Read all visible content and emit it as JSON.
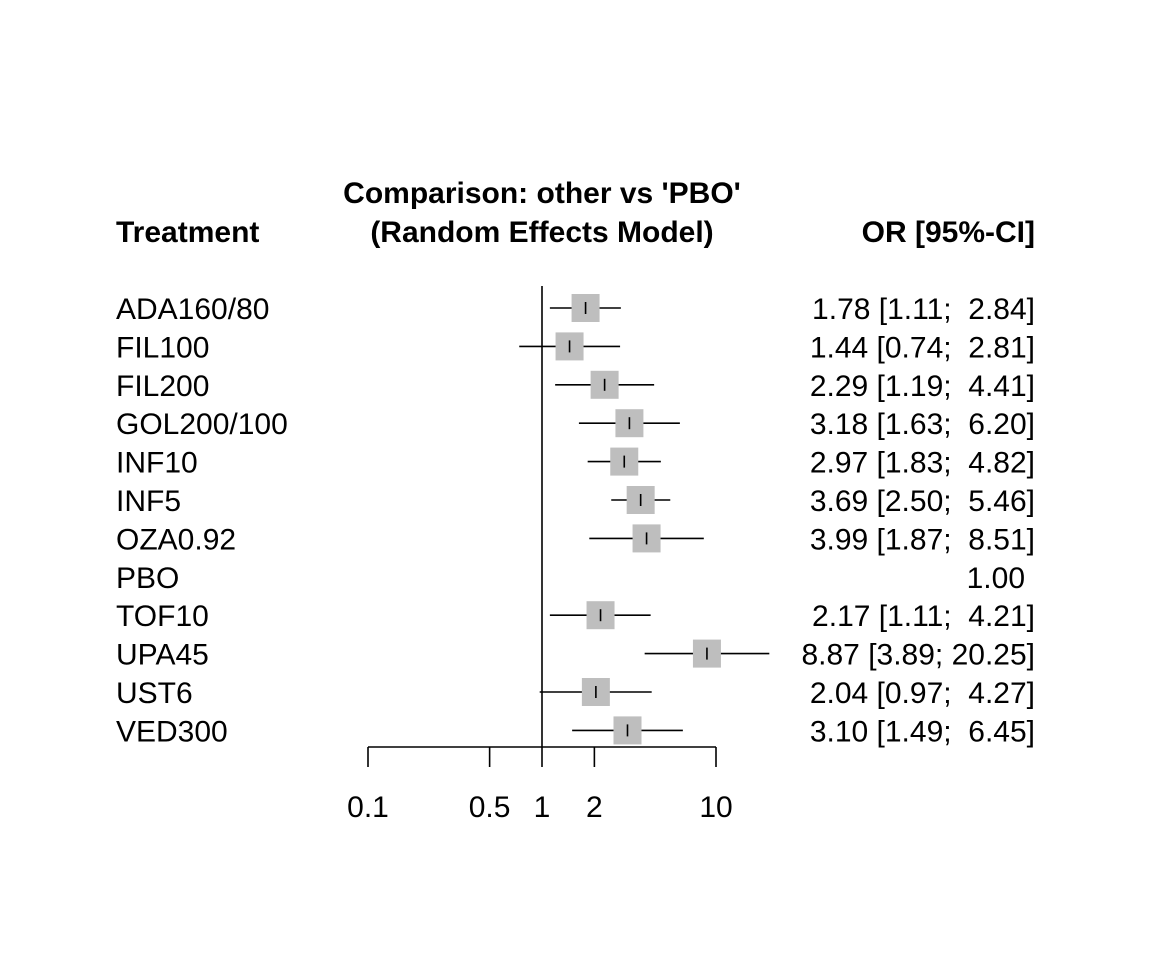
{
  "chart_data": {
    "type": "forest",
    "title": "Comparison: other vs 'PBO'",
    "subtitle": "(Random Effects Model)",
    "left_header": "Treatment",
    "right_header": "OR [95%-CI]",
    "x_scale": "log",
    "x_ticks": [
      0.1,
      0.5,
      1,
      2,
      10
    ],
    "x_tick_labels": [
      "0.1",
      "0.5",
      "1",
      "2",
      "10"
    ],
    "xlim": [
      0.1,
      10
    ],
    "reference_line": 1,
    "rows": [
      {
        "label": "ADA160/80",
        "or": 1.78,
        "lower": 1.11,
        "upper": 2.84,
        "text": "1.78 [1.11;  2.84]"
      },
      {
        "label": "FIL100",
        "or": 1.44,
        "lower": 0.74,
        "upper": 2.81,
        "text": "1.44 [0.74;  2.81]"
      },
      {
        "label": "FIL200",
        "or": 2.29,
        "lower": 1.19,
        "upper": 4.41,
        "text": "2.29 [1.19;  4.41]"
      },
      {
        "label": "GOL200/100",
        "or": 3.18,
        "lower": 1.63,
        "upper": 6.2,
        "text": "3.18 [1.63;  6.20]"
      },
      {
        "label": "INF10",
        "or": 2.97,
        "lower": 1.83,
        "upper": 4.82,
        "text": "2.97 [1.83;  4.82]"
      },
      {
        "label": "INF5",
        "or": 3.69,
        "lower": 2.5,
        "upper": 5.46,
        "text": "3.69 [2.50;  5.46]"
      },
      {
        "label": "OZA0.92",
        "or": 3.99,
        "lower": 1.87,
        "upper": 8.51,
        "text": "3.99 [1.87;  8.51]"
      },
      {
        "label": "PBO",
        "or": 1.0,
        "lower": null,
        "upper": null,
        "text": "1.00"
      },
      {
        "label": "TOF10",
        "or": 2.17,
        "lower": 1.11,
        "upper": 4.21,
        "text": "2.17 [1.11;  4.21]"
      },
      {
        "label": "UPA45",
        "or": 8.87,
        "lower": 3.89,
        "upper": 20.25,
        "text": "8.87 [3.89; 20.25]"
      },
      {
        "label": "UST6",
        "or": 2.04,
        "lower": 0.97,
        "upper": 4.27,
        "text": "2.04 [0.97;  4.27]"
      },
      {
        "label": "VED300",
        "or": 3.1,
        "lower": 1.49,
        "upper": 6.45,
        "text": "3.10 [1.49;  6.45]"
      }
    ],
    "colors": {
      "box": "#bebebe",
      "line": "#000000",
      "background": "#ffffff"
    }
  }
}
